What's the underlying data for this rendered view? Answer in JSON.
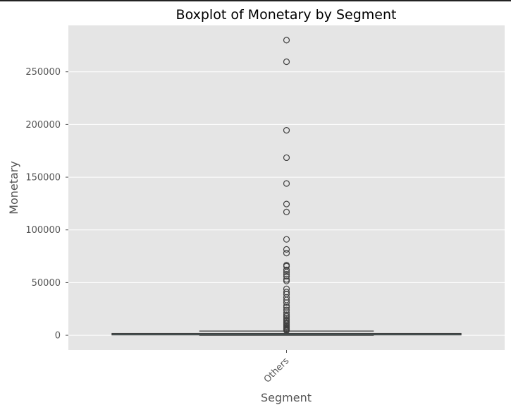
{
  "chart_data": {
    "type": "boxplot",
    "title": "Boxplot of Monetary by Segment",
    "xlabel": "Segment",
    "ylabel": "Monetary",
    "categories": [
      "Others"
    ],
    "ylim": [
      -14000,
      294000
    ],
    "yticks": [
      0,
      50000,
      100000,
      150000,
      200000,
      250000
    ],
    "ytick_labels": [
      "0",
      "50000",
      "100000",
      "150000",
      "200000",
      "250000"
    ],
    "grid": true,
    "background": "#e5e5e5",
    "box_color": "#5f9ea0",
    "boxes": [
      {
        "category": "Others",
        "whisker_low": 0,
        "q1": 300,
        "median": 700,
        "q3": 1700,
        "whisker_high": 4000,
        "outliers": [
          280000,
          259500,
          194500,
          168500,
          144000,
          124500,
          117000,
          91000,
          81500,
          78000,
          66500,
          65500,
          62000,
          60000,
          58000,
          56000,
          53000,
          51500,
          44000,
          41000,
          39000,
          36000,
          33500,
          31000,
          28000,
          26500,
          24000,
          21500,
          19500,
          18000,
          16500,
          15000,
          13500,
          12000,
          10800,
          9600,
          8500,
          7500,
          6600,
          5800,
          5000,
          4500
        ]
      }
    ]
  }
}
